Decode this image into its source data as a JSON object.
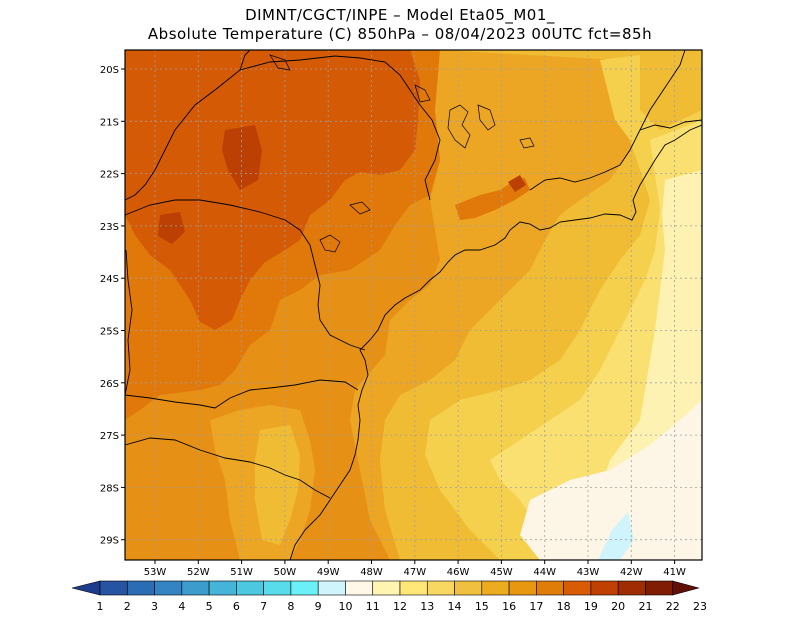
{
  "header": {
    "line1": "DIMNT/CGCT/INPE –  Model Eta05_M01_",
    "line2": "Absolute Temperature (C) 850hPa –  08/04/2023 00UTC fct=85h"
  },
  "map": {
    "lat_labels": [
      "20S",
      "21S",
      "22S",
      "23S",
      "24S",
      "25S",
      "26S",
      "27S",
      "28S",
      "29S"
    ],
    "lon_labels": [
      "53W",
      "52W",
      "51W",
      "50W",
      "49W",
      "48W",
      "47W",
      "46W",
      "45W",
      "44W",
      "43W",
      "42W",
      "41W"
    ]
  },
  "colorbar": {
    "labels": [
      "1",
      "2",
      "3",
      "4",
      "5",
      "6",
      "7",
      "8",
      "9",
      "10",
      "11",
      "12",
      "13",
      "14",
      "15",
      "16",
      "17",
      "18",
      "19",
      "20",
      "21",
      "22",
      "23"
    ],
    "colors": [
      "#1e3c8c",
      "#2654a0",
      "#2c6cb4",
      "#3484c4",
      "#3c9ccc",
      "#44b4d8",
      "#4cc8e0",
      "#58dcec",
      "#6cf0f8",
      "#d0f4fc",
      "#fff8e8",
      "#fff4b0",
      "#ffe878",
      "#f8d860",
      "#f0c040",
      "#ecac20",
      "#e89810",
      "#e07c08",
      "#d85c04",
      "#c04004",
      "#a02c04",
      "#801c04",
      "#601004"
    ]
  },
  "palette": {
    "t11": "#fdf6e6",
    "t12": "#fef2b2",
    "t13": "#f9e070",
    "t14": "#f4d04c",
    "t15": "#f0bc34",
    "t16": "#eca624",
    "t17": "#e79016",
    "t18": "#e0780a",
    "t19": "#d45a06",
    "t20": "#bc4004",
    "t21": "#9c2a04",
    "cold": "#d0f4fc",
    "grid": "#a0a0a0"
  }
}
